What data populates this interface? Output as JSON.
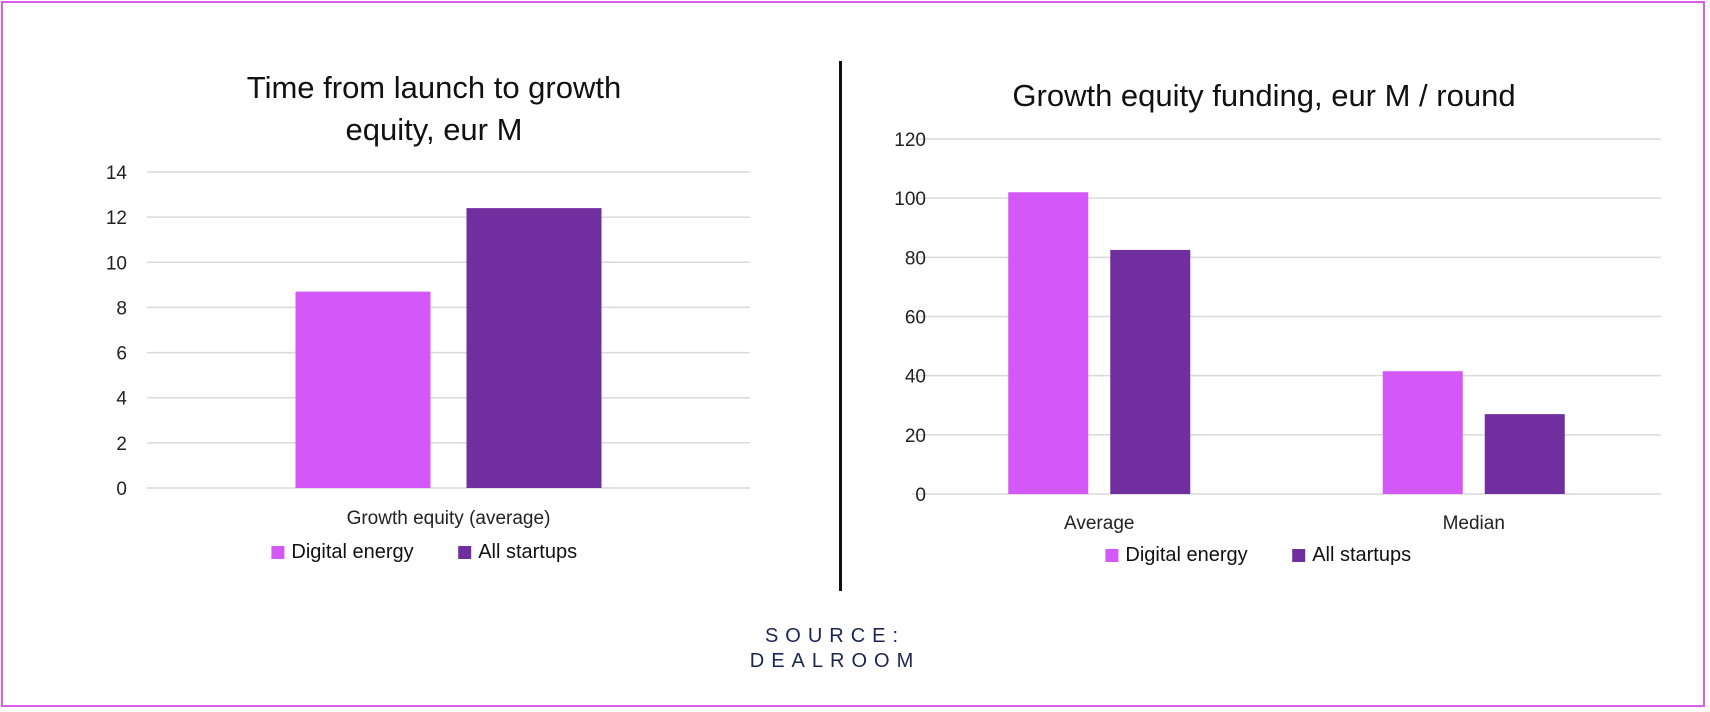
{
  "colors": {
    "frame": "#d85ee8",
    "digital_energy": "#d458f7",
    "all_startups": "#702e9e",
    "gridline": "#d9d9d9",
    "source_text": "#1d2451"
  },
  "source": {
    "line1": "SOURCE:",
    "line2": "DEALROOM"
  },
  "chart_data": [
    {
      "type": "bar",
      "title": "Time from launch to growth equity, eur M",
      "title_lines": [
        "Time from launch to growth",
        "equity, eur M"
      ],
      "categories": [
        "Growth equity (average)"
      ],
      "series": [
        {
          "name": "Digital energy",
          "values": [
            8.7
          ]
        },
        {
          "name": "All startups",
          "values": [
            12.4
          ]
        }
      ],
      "xlabel": "",
      "ylabel": "",
      "ylim": [
        0,
        14
      ],
      "yticks": [
        "0",
        "2",
        "4",
        "6",
        "8",
        "10",
        "12",
        "14"
      ],
      "grid": true,
      "legend": "bottom"
    },
    {
      "type": "bar",
      "title": "Growth equity funding, eur M / round",
      "title_lines": [
        "Growth equity funding, eur M / round"
      ],
      "categories": [
        "Average",
        "Median"
      ],
      "series": [
        {
          "name": "Digital energy",
          "values": [
            102,
            41.5
          ]
        },
        {
          "name": "All startups",
          "values": [
            82.5,
            27
          ]
        }
      ],
      "xlabel": "",
      "ylabel": "",
      "ylim": [
        0,
        120
      ],
      "yticks": [
        "0",
        "20",
        "40",
        "60",
        "80",
        "100",
        "120"
      ],
      "grid": true,
      "legend": "bottom"
    }
  ]
}
